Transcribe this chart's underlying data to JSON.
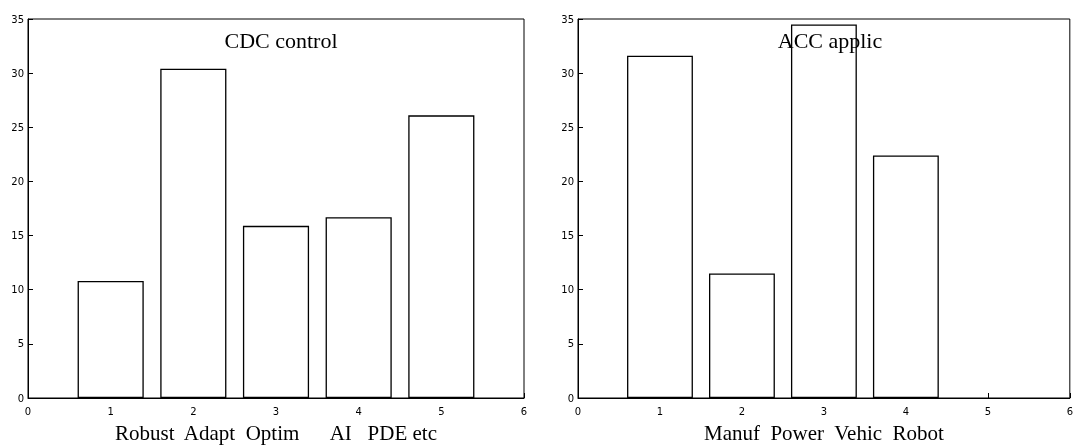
{
  "chart_data": [
    {
      "type": "bar",
      "title": "CDC control",
      "xlabel": "Robust  Adapt  Optim      AI   PDE etc",
      "x": [
        1,
        2,
        3,
        4,
        5
      ],
      "values": [
        10.8,
        30.4,
        15.9,
        16.7,
        26.1
      ],
      "color": "#ffffff",
      "xlim": [
        0,
        6
      ],
      "xticks": [
        0,
        1,
        2,
        3,
        4,
        5,
        6
      ],
      "ylim": [
        0,
        35
      ],
      "yticks": [
        0,
        5,
        10,
        15,
        20,
        25,
        30,
        35
      ],
      "grid": false
    },
    {
      "type": "bar",
      "title": "ACC applic",
      "xlabel": "Manuf  Power  Vehic  Robot",
      "x": [
        1,
        2,
        3,
        4
      ],
      "values": [
        31.6,
        11.5,
        34.5,
        22.4
      ],
      "color": "#ffffff",
      "xlim": [
        0,
        6
      ],
      "xticks": [
        0,
        1,
        2,
        3,
        4,
        5,
        6
      ],
      "ylim": [
        0,
        35
      ],
      "yticks": [
        0,
        5,
        10,
        15,
        20,
        25,
        30,
        35
      ],
      "grid": false
    }
  ]
}
